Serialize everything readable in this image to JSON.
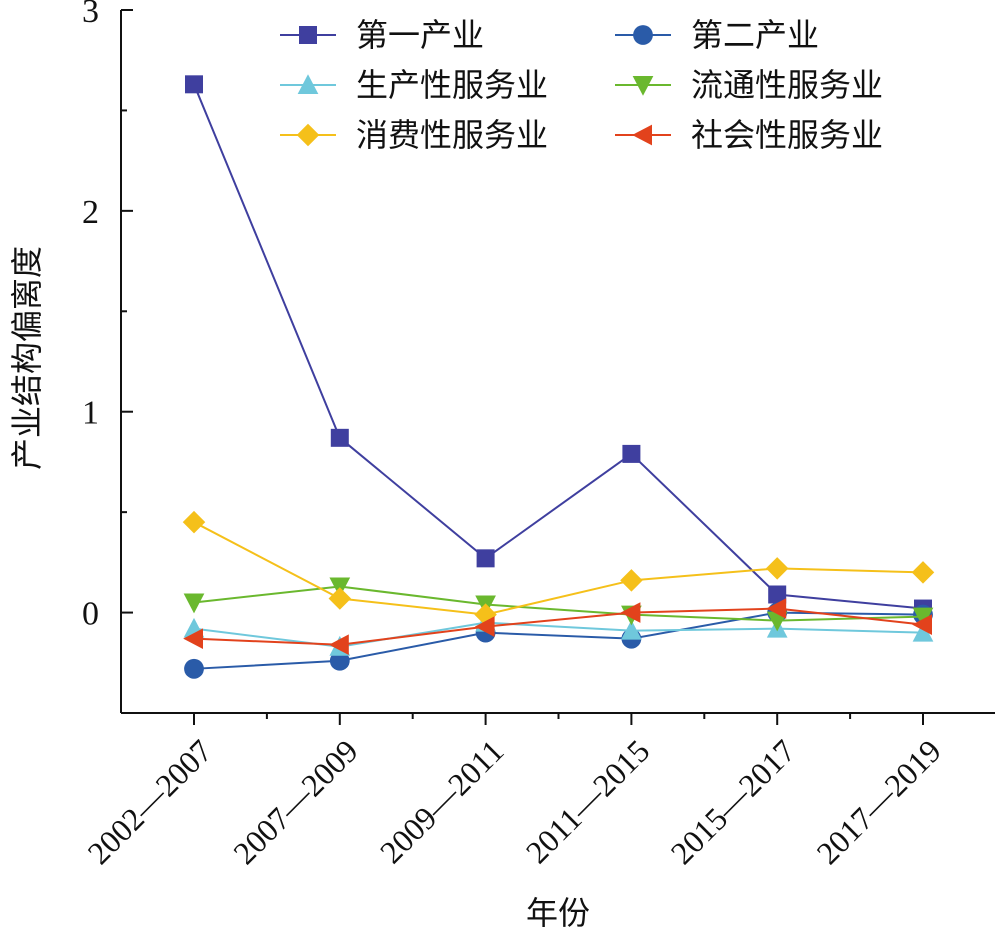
{
  "chart_data": {
    "type": "line",
    "title": "",
    "xlabel": "年份",
    "ylabel": "产业结构偏离度",
    "categories": [
      "2002—2007",
      "2007—2009",
      "2009—2011",
      "2011—2015",
      "2015—2017",
      "2017—2019"
    ],
    "ylim": [
      -0.5,
      3
    ],
    "yticks": [
      0,
      1,
      2,
      3
    ],
    "grid": false,
    "legend_position": "top-right",
    "series": [
      {
        "name": "第一产业",
        "color": "#3f3f9f",
        "marker": "square",
        "values": [
          2.63,
          0.87,
          0.27,
          0.79,
          0.09,
          0.02
        ]
      },
      {
        "name": "第二产业",
        "color": "#2a5ba8",
        "marker": "circle",
        "values": [
          -0.28,
          -0.24,
          -0.1,
          -0.13,
          0.0,
          -0.01
        ]
      },
      {
        "name": "生产性服务业",
        "color": "#6fc8dc",
        "marker": "triangle-up",
        "values": [
          -0.08,
          -0.17,
          -0.05,
          -0.09,
          -0.08,
          -0.1
        ]
      },
      {
        "name": "流通性服务业",
        "color": "#6ab82e",
        "marker": "triangle-down",
        "values": [
          0.05,
          0.13,
          0.04,
          -0.01,
          -0.04,
          -0.02
        ]
      },
      {
        "name": "消费性服务业",
        "color": "#f5c01a",
        "marker": "diamond",
        "values": [
          0.45,
          0.07,
          -0.01,
          0.16,
          0.22,
          0.2
        ]
      },
      {
        "name": "社会性服务业",
        "color": "#e2421c",
        "marker": "triangle-left",
        "values": [
          -0.13,
          -0.16,
          -0.07,
          0.0,
          0.02,
          -0.06
        ]
      }
    ]
  }
}
